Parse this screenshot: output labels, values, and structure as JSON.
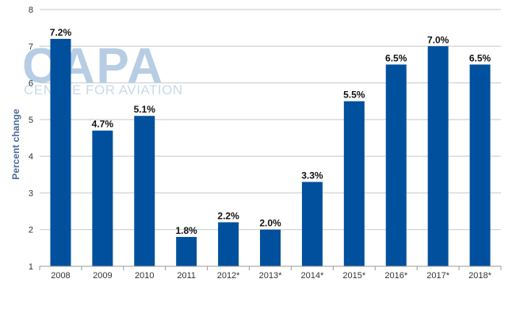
{
  "chart_data": {
    "type": "bar",
    "categories": [
      "2008",
      "2009",
      "2010",
      "2011",
      "2012*",
      "2013*",
      "2014*",
      "2015*",
      "2016*",
      "2017*",
      "2018*"
    ],
    "values": [
      7.2,
      4.7,
      5.1,
      1.8,
      2.2,
      2.0,
      3.3,
      5.5,
      6.5,
      7.0,
      6.5
    ],
    "data_labels": [
      "7.2%",
      "4.7%",
      "5.1%",
      "1.8%",
      "2.2%",
      "2.0%",
      "3.3%",
      "5.5%",
      "6.5%",
      "7.0%",
      "6.5%"
    ],
    "title": "",
    "xlabel": "",
    "ylabel": "Percent change",
    "ylim": [
      1,
      8
    ],
    "yticks": [
      1,
      2,
      3,
      4,
      5,
      6,
      7,
      8
    ],
    "grid": true,
    "legend": "none"
  },
  "watermark": {
    "brand": "CAPA",
    "tagline": "CENTRE FOR AVIATION"
  },
  "colors": {
    "bar": "#00509d",
    "grid": "#c8c8c8",
    "axis": "#999999",
    "ylabel": "#4a6d96",
    "watermark_big": "#b7cde4",
    "watermark_small": "#c9d9ea"
  }
}
